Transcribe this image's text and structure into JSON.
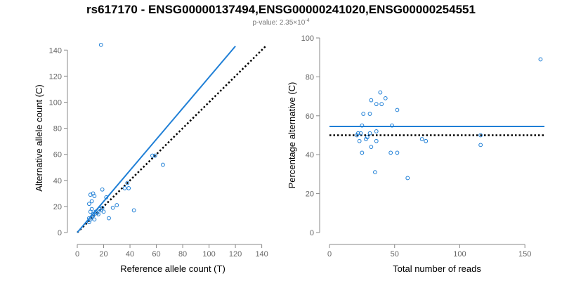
{
  "figure": {
    "title": "rs617170 - ENSG00000137494,ENSG00000241020,ENSG00000254551",
    "subtitle_prefix": "p-value: 2.35×10",
    "subtitle_exponent": "-4"
  },
  "colors": {
    "series": "#1f7fd6",
    "reference_line": "#000000",
    "axis": "#888888",
    "tick_label": "#666666"
  },
  "chart_data": [
    {
      "type": "scatter",
      "xlabel": "Reference allele count (T)",
      "ylabel": "Alternative allele count (C)",
      "xlim": [
        0,
        145
      ],
      "ylim": [
        0,
        145
      ],
      "xticks": [
        "0",
        "20",
        "40",
        "60",
        "80",
        "100",
        "120",
        "140"
      ],
      "yticks": [
        "0",
        "20",
        "40",
        "60",
        "80",
        "100",
        "120",
        "140"
      ],
      "grid": false,
      "points": [
        [
          18,
          144
        ],
        [
          10,
          29
        ],
        [
          12,
          30
        ],
        [
          13,
          28
        ],
        [
          9,
          22
        ],
        [
          11,
          24
        ],
        [
          19,
          33
        ],
        [
          10,
          16
        ],
        [
          12,
          14
        ],
        [
          11,
          12
        ],
        [
          10,
          10
        ],
        [
          9,
          11
        ],
        [
          13,
          10
        ],
        [
          12,
          13
        ],
        [
          11,
          18
        ],
        [
          14,
          16
        ],
        [
          15,
          15
        ],
        [
          9,
          8
        ],
        [
          16,
          14
        ],
        [
          17,
          18
        ],
        [
          18,
          17
        ],
        [
          19,
          19
        ],
        [
          20,
          16
        ],
        [
          22,
          27
        ],
        [
          24,
          11
        ],
        [
          27,
          19
        ],
        [
          30,
          21
        ],
        [
          36,
          34
        ],
        [
          38,
          38
        ],
        [
          39,
          34
        ],
        [
          43,
          17
        ],
        [
          57,
          59
        ],
        [
          59,
          59
        ],
        [
          65,
          52
        ]
      ],
      "fitted_line": {
        "from": [
          0,
          0
        ],
        "to": [
          120,
          143
        ]
      },
      "reference_line": {
        "from": [
          0,
          0
        ],
        "to": [
          143,
          143
        ]
      }
    },
    {
      "type": "scatter",
      "xlabel": "Total number of reads",
      "ylabel": "Percentage alternative (C)",
      "xlim": [
        0,
        165
      ],
      "ylim": [
        0,
        100
      ],
      "xticks": [
        "0",
        "50",
        "100",
        "150"
      ],
      "yticks": [
        "0",
        "20",
        "40",
        "60",
        "80",
        "100"
      ],
      "grid": false,
      "points": [
        [
          162,
          89
        ],
        [
          39,
          72
        ],
        [
          43,
          69
        ],
        [
          32,
          68
        ],
        [
          36,
          66
        ],
        [
          40,
          66
        ],
        [
          52,
          63
        ],
        [
          26,
          61
        ],
        [
          31,
          61
        ],
        [
          25,
          55
        ],
        [
          48,
          55
        ],
        [
          36,
          52
        ],
        [
          22,
          51
        ],
        [
          24,
          51
        ],
        [
          31,
          51
        ],
        [
          21,
          50
        ],
        [
          29,
          49
        ],
        [
          23,
          47
        ],
        [
          28,
          48
        ],
        [
          36,
          47
        ],
        [
          47,
          41
        ],
        [
          52,
          41
        ],
        [
          25,
          41
        ],
        [
          32,
          44
        ],
        [
          71,
          48
        ],
        [
          74,
          47
        ],
        [
          116,
          50
        ],
        [
          116,
          45
        ],
        [
          35,
          31
        ],
        [
          60,
          28
        ]
      ],
      "fitted_line": {
        "y": 54.5
      },
      "reference_line": {
        "y": 50
      }
    }
  ]
}
